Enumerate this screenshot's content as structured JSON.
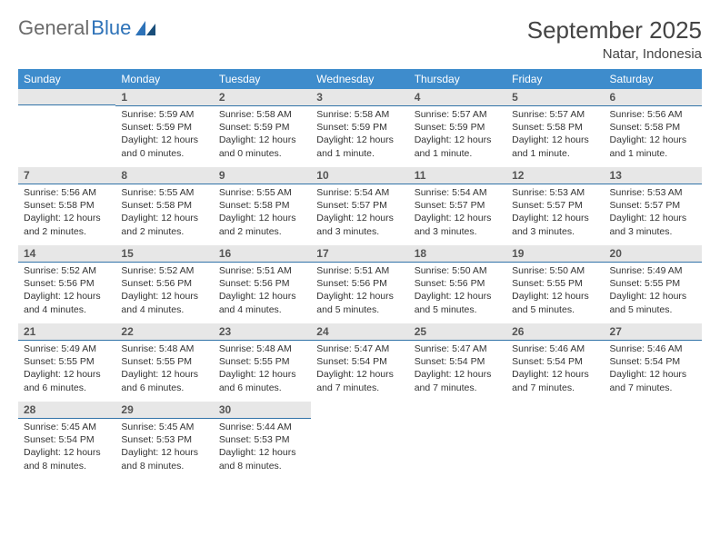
{
  "brand": {
    "part1": "General",
    "part2": "Blue"
  },
  "title": "September 2025",
  "location": "Natar, Indonesia",
  "colors": {
    "header_bg": "#3e8ccc",
    "header_text": "#ffffff",
    "daybar_bg": "#e7e7e7",
    "daybar_border": "#3273a8",
    "brand_gray": "#6b6b6b",
    "brand_blue": "#2d72b8"
  },
  "weekdays": [
    "Sunday",
    "Monday",
    "Tuesday",
    "Wednesday",
    "Thursday",
    "Friday",
    "Saturday"
  ],
  "leading_blanks": 1,
  "days": [
    {
      "n": "1",
      "sr": "5:59 AM",
      "ss": "5:59 PM",
      "dl": "12 hours and 0 minutes."
    },
    {
      "n": "2",
      "sr": "5:58 AM",
      "ss": "5:59 PM",
      "dl": "12 hours and 0 minutes."
    },
    {
      "n": "3",
      "sr": "5:58 AM",
      "ss": "5:59 PM",
      "dl": "12 hours and 1 minute."
    },
    {
      "n": "4",
      "sr": "5:57 AM",
      "ss": "5:59 PM",
      "dl": "12 hours and 1 minute."
    },
    {
      "n": "5",
      "sr": "5:57 AM",
      "ss": "5:58 PM",
      "dl": "12 hours and 1 minute."
    },
    {
      "n": "6",
      "sr": "5:56 AM",
      "ss": "5:58 PM",
      "dl": "12 hours and 1 minute."
    },
    {
      "n": "7",
      "sr": "5:56 AM",
      "ss": "5:58 PM",
      "dl": "12 hours and 2 minutes."
    },
    {
      "n": "8",
      "sr": "5:55 AM",
      "ss": "5:58 PM",
      "dl": "12 hours and 2 minutes."
    },
    {
      "n": "9",
      "sr": "5:55 AM",
      "ss": "5:58 PM",
      "dl": "12 hours and 2 minutes."
    },
    {
      "n": "10",
      "sr": "5:54 AM",
      "ss": "5:57 PM",
      "dl": "12 hours and 3 minutes."
    },
    {
      "n": "11",
      "sr": "5:54 AM",
      "ss": "5:57 PM",
      "dl": "12 hours and 3 minutes."
    },
    {
      "n": "12",
      "sr": "5:53 AM",
      "ss": "5:57 PM",
      "dl": "12 hours and 3 minutes."
    },
    {
      "n": "13",
      "sr": "5:53 AM",
      "ss": "5:57 PM",
      "dl": "12 hours and 3 minutes."
    },
    {
      "n": "14",
      "sr": "5:52 AM",
      "ss": "5:56 PM",
      "dl": "12 hours and 4 minutes."
    },
    {
      "n": "15",
      "sr": "5:52 AM",
      "ss": "5:56 PM",
      "dl": "12 hours and 4 minutes."
    },
    {
      "n": "16",
      "sr": "5:51 AM",
      "ss": "5:56 PM",
      "dl": "12 hours and 4 minutes."
    },
    {
      "n": "17",
      "sr": "5:51 AM",
      "ss": "5:56 PM",
      "dl": "12 hours and 5 minutes."
    },
    {
      "n": "18",
      "sr": "5:50 AM",
      "ss": "5:56 PM",
      "dl": "12 hours and 5 minutes."
    },
    {
      "n": "19",
      "sr": "5:50 AM",
      "ss": "5:55 PM",
      "dl": "12 hours and 5 minutes."
    },
    {
      "n": "20",
      "sr": "5:49 AM",
      "ss": "5:55 PM",
      "dl": "12 hours and 5 minutes."
    },
    {
      "n": "21",
      "sr": "5:49 AM",
      "ss": "5:55 PM",
      "dl": "12 hours and 6 minutes."
    },
    {
      "n": "22",
      "sr": "5:48 AM",
      "ss": "5:55 PM",
      "dl": "12 hours and 6 minutes."
    },
    {
      "n": "23",
      "sr": "5:48 AM",
      "ss": "5:55 PM",
      "dl": "12 hours and 6 minutes."
    },
    {
      "n": "24",
      "sr": "5:47 AM",
      "ss": "5:54 PM",
      "dl": "12 hours and 7 minutes."
    },
    {
      "n": "25",
      "sr": "5:47 AM",
      "ss": "5:54 PM",
      "dl": "12 hours and 7 minutes."
    },
    {
      "n": "26",
      "sr": "5:46 AM",
      "ss": "5:54 PM",
      "dl": "12 hours and 7 minutes."
    },
    {
      "n": "27",
      "sr": "5:46 AM",
      "ss": "5:54 PM",
      "dl": "12 hours and 7 minutes."
    },
    {
      "n": "28",
      "sr": "5:45 AM",
      "ss": "5:54 PM",
      "dl": "12 hours and 8 minutes."
    },
    {
      "n": "29",
      "sr": "5:45 AM",
      "ss": "5:53 PM",
      "dl": "12 hours and 8 minutes."
    },
    {
      "n": "30",
      "sr": "5:44 AM",
      "ss": "5:53 PM",
      "dl": "12 hours and 8 minutes."
    }
  ],
  "labels": {
    "sunrise": "Sunrise:",
    "sunset": "Sunset:",
    "daylight": "Daylight:"
  }
}
